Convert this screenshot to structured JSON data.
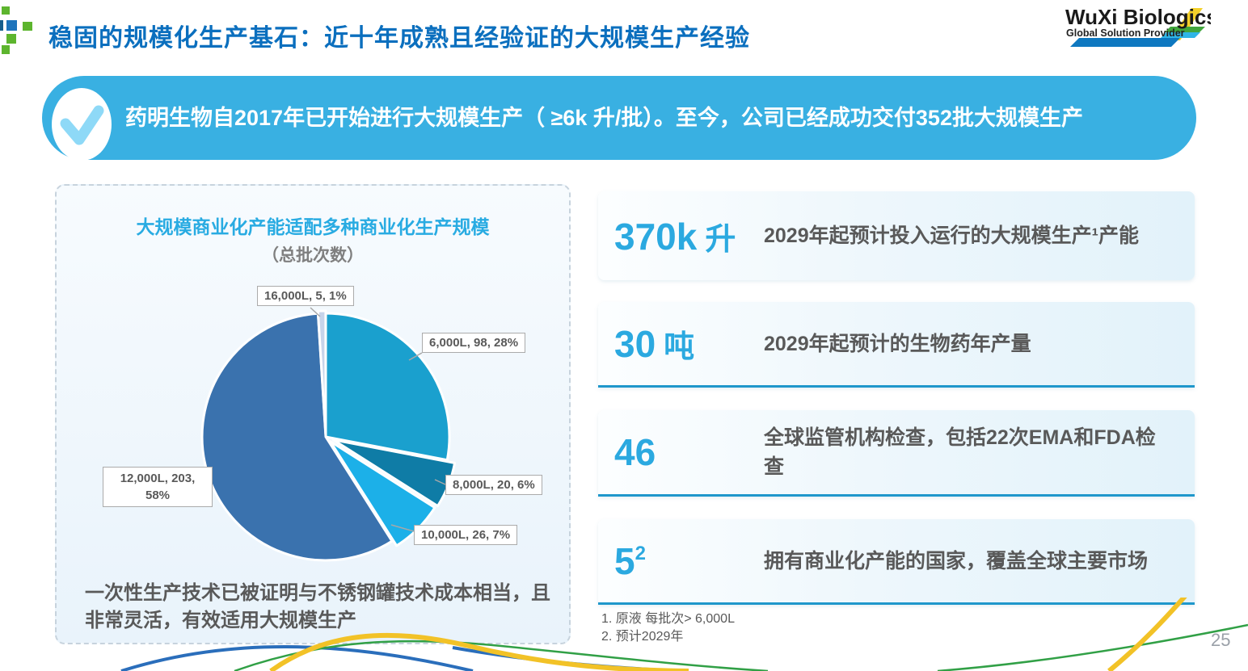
{
  "page": {
    "title": "稳固的规模化生产基石：近十年成熟且经验证的大规模生产经验",
    "page_number": "25"
  },
  "logo": {
    "name": "WuXi Biologics",
    "tagline": "Global Solution Provider"
  },
  "banner": {
    "text": "药明生物自2017年已开始进行大规模生产（ ≥6k 升/批）。至今，公司已经成功交付352批大规模生产"
  },
  "panel": {
    "title": "大规模商业化产能适配多种商业化生产规模",
    "subtitle": "（总批次数）",
    "note": "一次性生产技术已被证明与不锈钢罐技术成本相当，且非常灵活，有效适用大规模生产"
  },
  "chart_data": {
    "type": "pie",
    "title": "大规模商业化产能适配多种商业化生产规模",
    "subtitle": "（总批次数）",
    "total_batches": 352,
    "label_format": "scale, batches, percent",
    "slices": [
      {
        "label": "6,000L",
        "batches": 98,
        "percent": 28,
        "color": "#1aa0ce"
      },
      {
        "label": "8,000L",
        "batches": 20,
        "percent": 6,
        "color": "#0f7ca6"
      },
      {
        "label": "10,000L",
        "batches": 26,
        "percent": 7,
        "color": "#1cb0e8"
      },
      {
        "label": "12,000L",
        "batches": 203,
        "percent": 58,
        "color": "#3a72ae"
      },
      {
        "label": "16,000L",
        "batches": 5,
        "percent": 1,
        "color": "#c7d4ea"
      }
    ]
  },
  "stats": [
    {
      "value": "370k",
      "unit": "升",
      "sup": "",
      "desc": "2029年起预计投入运行的大规模生产¹产能"
    },
    {
      "value": "30",
      "unit": "吨",
      "sup": "",
      "desc": "2029年起预计的生物药年产量"
    },
    {
      "value": "46",
      "unit": "",
      "sup": "",
      "desc": "全球监管机构检查，包括22次EMA和FDA检查"
    },
    {
      "value": "5",
      "unit": "",
      "sup": "2",
      "desc": "拥有商业化产能的国家，覆盖全球主要市场"
    }
  ],
  "footnotes": [
    "1. 原液 每批次> 6,000L",
    "2. 预计2029年"
  ],
  "colors": {
    "title_blue": "#0b6fbe",
    "banner_blue": "#39b0e2",
    "check_blue": "#8ed9f7",
    "accent_cyan": "#2ba9e0",
    "divider_blue": "#1f97cb",
    "text_gray": "#595959"
  }
}
